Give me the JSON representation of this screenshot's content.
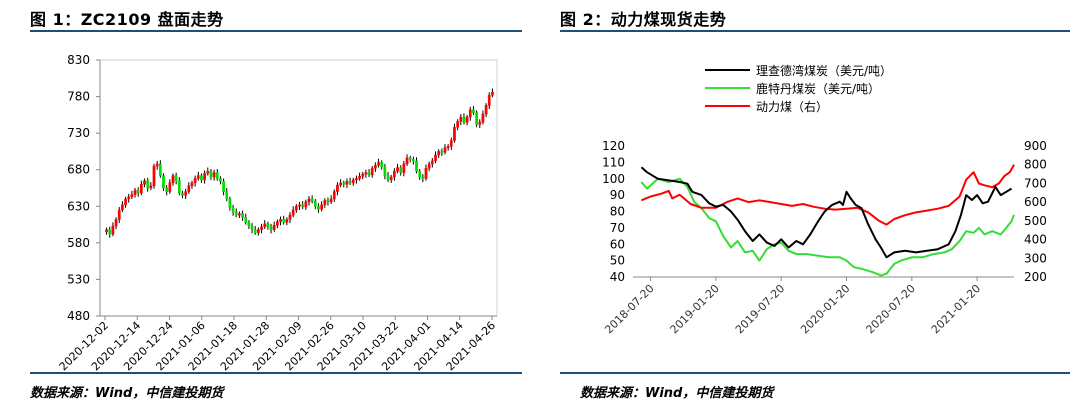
{
  "left": {
    "title": "图 1：ZC2109 盘面走势",
    "source": "数据来源：Wind，中信建投期货"
  },
  "right": {
    "title": "图 2：动力煤现货走势",
    "source": "数据来源：Wind，中信建投期货"
  },
  "colors": {
    "rule": "#1f4e79",
    "up": "#ff0000",
    "down": "#00dd00",
    "wick": "#000000",
    "ny": "#000000",
    "rq": "#33dd33",
    "coal": "#ff0000"
  },
  "chart_data": [
    {
      "type": "candlestick",
      "title": "ZC2109 盘面走势",
      "ylim": [
        480,
        830
      ],
      "yticks": [
        480,
        530,
        580,
        630,
        680,
        730,
        780,
        830
      ],
      "xticks": [
        "2020-12-02",
        "2020-12-14",
        "2020-12-24",
        "2021-01-06",
        "2021-01-18",
        "2021-01-28",
        "2021-02-09",
        "2021-02-26",
        "2021-03-10",
        "2021-03-22",
        "2021-04-01",
        "2021-04-14",
        "2021-04-26"
      ],
      "close_series": [
        598,
        592,
        603,
        612,
        625,
        632,
        640,
        643,
        646,
        652,
        648,
        660,
        665,
        655,
        658,
        685,
        688,
        672,
        655,
        650,
        662,
        672,
        665,
        648,
        645,
        650,
        658,
        662,
        668,
        672,
        666,
        675,
        678,
        670,
        676,
        668,
        664,
        650,
        640,
        628,
        622,
        618,
        620,
        615,
        608,
        603,
        598,
        594,
        598,
        602,
        606,
        602,
        598,
        604,
        609,
        612,
        608,
        612,
        618,
        625,
        630,
        632,
        629,
        636,
        640,
        637,
        630,
        626,
        632,
        638,
        636,
        640,
        650,
        659,
        662,
        660,
        664,
        662,
        666,
        668,
        671,
        674,
        676,
        673,
        682,
        686,
        690,
        684,
        672,
        666,
        670,
        678,
        683,
        676,
        688,
        696,
        694,
        692,
        678,
        670,
        668,
        682,
        688,
        692,
        700,
        705,
        704,
        710,
        712,
        720,
        738,
        746,
        752,
        745,
        752,
        762,
        758,
        742,
        745,
        756,
        768,
        782,
        786
      ]
    },
    {
      "type": "line",
      "title": "动力煤现货走势",
      "x_range": [
        "2018-06",
        "2021-05"
      ],
      "xticks": [
        "2018-07-20",
        "2019-01-20",
        "2019-07-20",
        "2020-01-20",
        "2020-07-20",
        "2021-01-20"
      ],
      "y_left": {
        "ticks": [
          40,
          50,
          60,
          70,
          80,
          90,
          100,
          110,
          120
        ],
        "lim": [
          40,
          120
        ]
      },
      "y_right": {
        "ticks": [
          200,
          300,
          400,
          500,
          600,
          700,
          800,
          900
        ],
        "lim": [
          200,
          900
        ]
      },
      "series": [
        {
          "name": "理查德湾煤炭（美元/吨）",
          "axis": "left",
          "color_key": "ny",
          "points": [
            [
              "2018-06-25",
              107
            ],
            [
              "2018-07-10",
              104
            ],
            [
              "2018-08-10",
              100
            ],
            [
              "2018-09-10",
              99
            ],
            [
              "2018-10-10",
              98
            ],
            [
              "2018-11-01",
              97
            ],
            [
              "2018-11-15",
              92
            ],
            [
              "2018-12-10",
              90
            ],
            [
              "2019-01-01",
              85
            ],
            [
              "2019-01-20",
              83
            ],
            [
              "2019-02-10",
              84
            ],
            [
              "2019-03-01",
              80
            ],
            [
              "2019-03-20",
              75
            ],
            [
              "2019-04-10",
              68
            ],
            [
              "2019-05-01",
              62
            ],
            [
              "2019-05-20",
              66
            ],
            [
              "2019-06-10",
              61
            ],
            [
              "2019-07-01",
              59
            ],
            [
              "2019-07-20",
              63
            ],
            [
              "2019-08-10",
              58
            ],
            [
              "2019-09-01",
              62
            ],
            [
              "2019-09-20",
              60
            ],
            [
              "2019-10-10",
              66
            ],
            [
              "2019-11-01",
              74
            ],
            [
              "2019-11-20",
              80
            ],
            [
              "2019-12-10",
              84
            ],
            [
              "2020-01-01",
              86
            ],
            [
              "2020-01-10",
              84
            ],
            [
              "2020-01-20",
              92
            ],
            [
              "2020-02-01",
              88
            ],
            [
              "2020-02-15",
              84
            ],
            [
              "2020-03-01",
              82
            ],
            [
              "2020-03-20",
              72
            ],
            [
              "2020-04-10",
              63
            ],
            [
              "2020-04-25",
              58
            ],
            [
              "2020-05-10",
              52
            ],
            [
              "2020-06-01",
              55
            ],
            [
              "2020-07-01",
              56
            ],
            [
              "2020-08-01",
              55
            ],
            [
              "2020-09-01",
              56
            ],
            [
              "2020-10-01",
              57
            ],
            [
              "2020-11-01",
              60
            ],
            [
              "2020-11-20",
              68
            ],
            [
              "2020-12-05",
              78
            ],
            [
              "2020-12-20",
              90
            ],
            [
              "2021-01-05",
              87
            ],
            [
              "2021-01-20",
              90
            ],
            [
              "2021-02-05",
              85
            ],
            [
              "2021-02-20",
              86
            ],
            [
              "2021-03-10",
              95
            ],
            [
              "2021-03-25",
              90
            ],
            [
              "2021-04-10",
              92
            ],
            [
              "2021-04-25",
              94
            ]
          ]
        },
        {
          "name": "鹿特丹煤炭（美元/吨）",
          "axis": "left",
          "color_key": "rq",
          "points": [
            [
              "2018-06-25",
              98
            ],
            [
              "2018-07-10",
              94
            ],
            [
              "2018-08-10",
              100
            ],
            [
              "2018-09-10",
              98
            ],
            [
              "2018-10-10",
              100
            ],
            [
              "2018-11-01",
              95
            ],
            [
              "2018-11-20",
              86
            ],
            [
              "2018-12-10",
              82
            ],
            [
              "2019-01-01",
              76
            ],
            [
              "2019-01-20",
              74
            ],
            [
              "2019-02-10",
              65
            ],
            [
              "2019-03-01",
              58
            ],
            [
              "2019-03-20",
              62
            ],
            [
              "2019-04-10",
              55
            ],
            [
              "2019-05-01",
              56
            ],
            [
              "2019-05-20",
              50
            ],
            [
              "2019-06-10",
              57
            ],
            [
              "2019-07-01",
              60
            ],
            [
              "2019-07-20",
              61
            ],
            [
              "2019-08-10",
              56
            ],
            [
              "2019-09-01",
              54
            ],
            [
              "2019-10-01",
              54
            ],
            [
              "2019-11-01",
              53
            ],
            [
              "2019-12-01",
              52
            ],
            [
              "2020-01-01",
              52
            ],
            [
              "2020-01-20",
              50
            ],
            [
              "2020-02-10",
              46
            ],
            [
              "2020-03-01",
              45
            ],
            [
              "2020-04-01",
              43
            ],
            [
              "2020-04-25",
              41
            ],
            [
              "2020-05-10",
              42
            ],
            [
              "2020-06-01",
              48
            ],
            [
              "2020-06-20",
              50
            ],
            [
              "2020-07-20",
              52
            ],
            [
              "2020-08-20",
              52
            ],
            [
              "2020-09-20",
              54
            ],
            [
              "2020-10-20",
              55
            ],
            [
              "2020-11-10",
              57
            ],
            [
              "2020-12-01",
              62
            ],
            [
              "2020-12-20",
              68
            ],
            [
              "2021-01-10",
              67
            ],
            [
              "2021-01-25",
              70
            ],
            [
              "2021-02-10",
              66
            ],
            [
              "2021-03-01",
              68
            ],
            [
              "2021-03-25",
              66
            ],
            [
              "2021-04-10",
              70
            ],
            [
              "2021-04-25",
              74
            ],
            [
              "2021-05-01",
              78
            ]
          ]
        },
        {
          "name": "动力煤（右）",
          "axis": "right",
          "color_key": "coal",
          "points": [
            [
              "2018-06-25",
              610
            ],
            [
              "2018-07-20",
              630
            ],
            [
              "2018-08-20",
              645
            ],
            [
              "2018-09-10",
              660
            ],
            [
              "2018-09-20",
              620
            ],
            [
              "2018-10-10",
              640
            ],
            [
              "2018-11-10",
              590
            ],
            [
              "2018-12-10",
              570
            ],
            [
              "2019-01-20",
              570
            ],
            [
              "2019-02-20",
              600
            ],
            [
              "2019-03-20",
              620
            ],
            [
              "2019-04-20",
              600
            ],
            [
              "2019-05-20",
              610
            ],
            [
              "2019-06-20",
              600
            ],
            [
              "2019-07-20",
              590
            ],
            [
              "2019-08-20",
              580
            ],
            [
              "2019-09-20",
              590
            ],
            [
              "2019-10-20",
              575
            ],
            [
              "2019-11-20",
              565
            ],
            [
              "2019-12-20",
              560
            ],
            [
              "2020-01-20",
              565
            ],
            [
              "2020-02-20",
              570
            ],
            [
              "2020-03-20",
              545
            ],
            [
              "2020-04-20",
              500
            ],
            [
              "2020-05-10",
              480
            ],
            [
              "2020-06-01",
              510
            ],
            [
              "2020-07-01",
              530
            ],
            [
              "2020-08-01",
              545
            ],
            [
              "2020-09-01",
              555
            ],
            [
              "2020-10-01",
              565
            ],
            [
              "2020-11-01",
              580
            ],
            [
              "2020-12-01",
              630
            ],
            [
              "2020-12-20",
              720
            ],
            [
              "2021-01-10",
              760
            ],
            [
              "2021-01-25",
              700
            ],
            [
              "2021-02-10",
              690
            ],
            [
              "2021-03-01",
              680
            ],
            [
              "2021-03-20",
              700
            ],
            [
              "2021-04-05",
              740
            ],
            [
              "2021-04-20",
              760
            ],
            [
              "2021-05-01",
              800
            ]
          ]
        }
      ],
      "legend": "top"
    }
  ]
}
